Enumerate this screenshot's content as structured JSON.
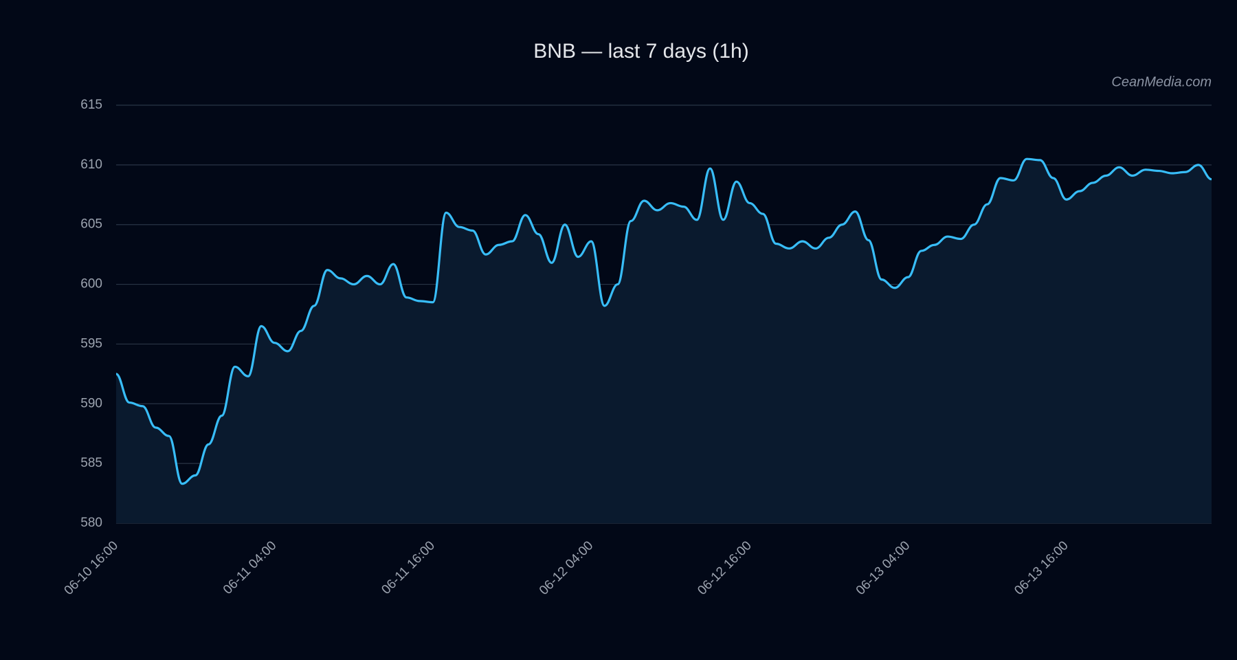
{
  "chart_data": {
    "type": "line",
    "title": "BNB — last 7 days (1h)",
    "watermark": "CeanMedia.com",
    "categories": [
      "06-10 16:00",
      null,
      null,
      null,
      null,
      null,
      null,
      null,
      null,
      null,
      null,
      null,
      "06-11 04:00",
      null,
      null,
      null,
      null,
      null,
      null,
      null,
      null,
      null,
      null,
      null,
      "06-11 16:00",
      null,
      null,
      null,
      null,
      null,
      null,
      null,
      null,
      null,
      null,
      null,
      "06-12 04:00",
      null,
      null,
      null,
      null,
      null,
      null,
      null,
      null,
      null,
      null,
      null,
      "06-12 16:00",
      null,
      null,
      null,
      null,
      null,
      null,
      null,
      null,
      null,
      null,
      null,
      "06-13 04:00",
      null,
      null,
      null,
      null,
      null,
      null,
      null,
      null,
      null,
      null,
      null,
      "06-13 16:00",
      null,
      null,
      null,
      null,
      null,
      null,
      null,
      null,
      null,
      null,
      null
    ],
    "series": [
      {
        "name": "BNB",
        "color": "#38bdf8",
        "fill": "#0a1a2e",
        "values": [
          592.5,
          590.1,
          589.8,
          588.0,
          587.3,
          583.3,
          584.0,
          586.6,
          589.0,
          593.1,
          592.3,
          596.5,
          595.1,
          594.4,
          596.1,
          598.2,
          601.2,
          600.5,
          600.0,
          600.7,
          600.0,
          601.7,
          598.9,
          598.6,
          598.5,
          606.0,
          604.8,
          604.5,
          602.5,
          603.3,
          603.6,
          605.8,
          604.2,
          601.8,
          605.0,
          602.3,
          603.6,
          598.2,
          600.0,
          605.3,
          607.0,
          606.2,
          606.8,
          606.5,
          605.4,
          609.7,
          605.4,
          608.6,
          606.8,
          605.9,
          603.4,
          603.0,
          603.6,
          603.0,
          603.9,
          605.0,
          606.1,
          603.7,
          600.4,
          599.7,
          600.6,
          602.8,
          603.3,
          604.0,
          603.8,
          605.0,
          606.7,
          608.9,
          608.7,
          610.5,
          610.4,
          608.9,
          607.1,
          607.8,
          608.5,
          609.1,
          609.8,
          609.1,
          609.6,
          609.5,
          609.3,
          609.4,
          610.0,
          608.8
        ]
      }
    ],
    "ylim": [
      580,
      615
    ],
    "yticks": [
      580,
      585,
      590,
      595,
      600,
      605,
      610,
      615
    ],
    "grid": true
  }
}
